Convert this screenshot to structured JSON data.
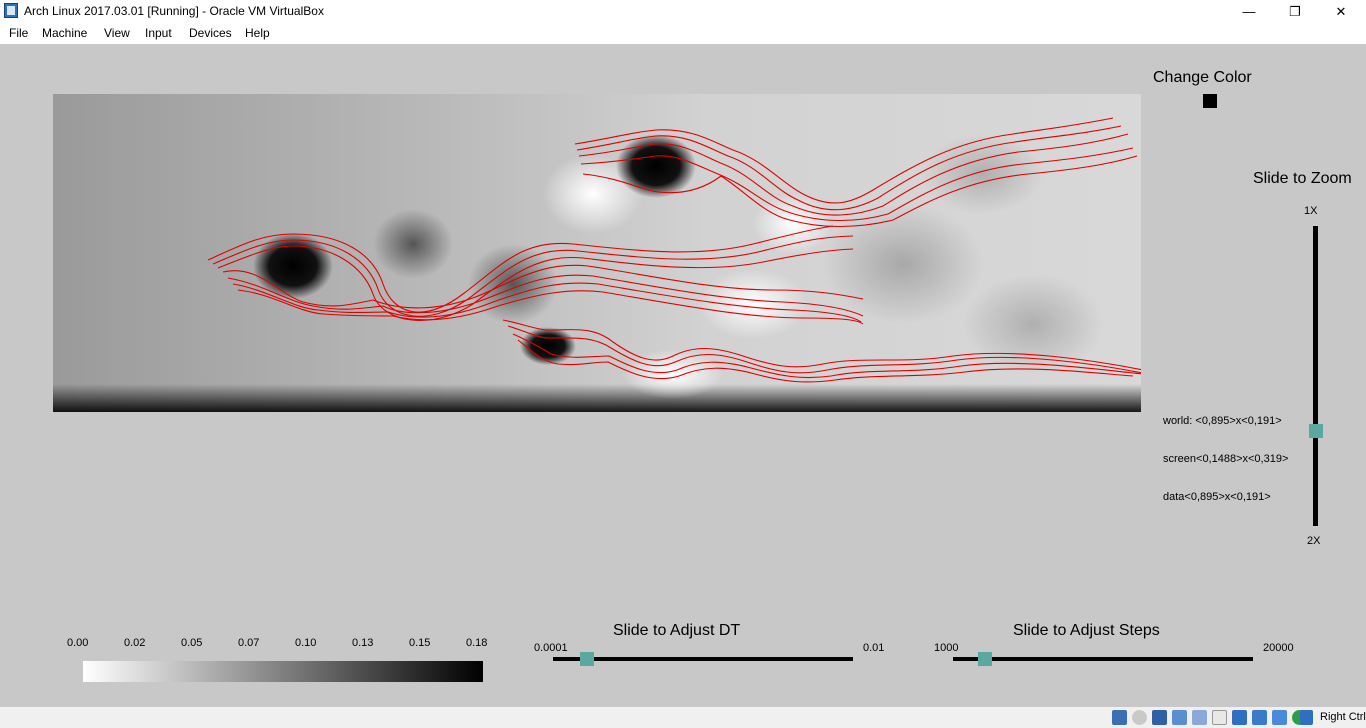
{
  "window": {
    "title": "Arch Linux 2017.03.01 [Running] - Oracle VM VirtualBox",
    "minimize": "—",
    "restore": "❐",
    "close": "✕"
  },
  "menu": {
    "items": [
      {
        "label": "File"
      },
      {
        "label": "Machine"
      },
      {
        "label": "View"
      },
      {
        "label": "Input"
      },
      {
        "label": "Devices"
      },
      {
        "label": "Help"
      }
    ]
  },
  "panel": {
    "change_color_label": "Change Color",
    "current_color": "#000000",
    "zoom": {
      "label": "Slide to Zoom",
      "min_label": "1X",
      "max_label": "2X",
      "value_fraction": 0.67
    },
    "info": {
      "world": "world: <0,895>x<0,191>",
      "screen": "screen<0,1488>x<0,319>",
      "data": "data<0,895>x<0,191>"
    }
  },
  "colorbar": {
    "ticks": [
      "0.00",
      "0.02",
      "0.05",
      "0.07",
      "0.10",
      "0.13",
      "0.15",
      "0.18"
    ],
    "gradient": [
      "#ffffff",
      "#000000"
    ]
  },
  "dt_slider": {
    "label": "Slide to Adjust DT",
    "min_label": "0.0001",
    "max_label": "0.01",
    "value_fraction": 0.11
  },
  "steps_slider": {
    "label": "Slide to Adjust Steps",
    "min_label": "1000",
    "max_label": "20000",
    "value_fraction": 0.11
  },
  "statusbar": {
    "host_key": "Right Ctrl"
  },
  "streamline_color": "#e00000",
  "slider_thumb_color": "#5aa8a0"
}
